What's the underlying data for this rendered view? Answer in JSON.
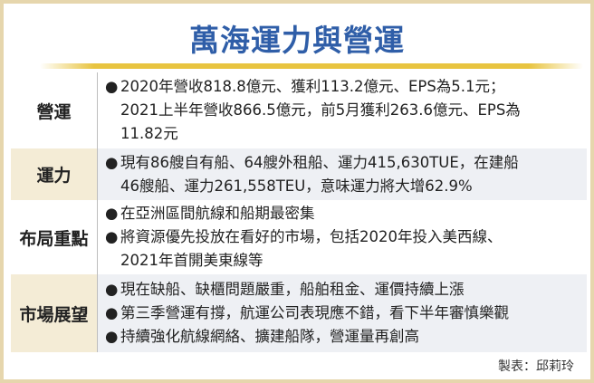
{
  "title": "萬海運力與營運",
  "rows": [
    {
      "label": "營運",
      "items": [
        "2020年營收818.8億元、獲利113.2億元、EPS為5.1元；",
        "2021上半年營收866.5億元，前5月獲利263.6億元、EPS為",
        "11.82元"
      ]
    },
    {
      "label": "運力",
      "items": [
        "現有86艘自有船、64艘外租船、運力415,630TUE，在建船",
        "46艘船、運力261,558TEU，意味運力將大增62.9%"
      ]
    },
    {
      "label": "布局重點",
      "items": [
        "在亞洲區間航線和船期最密集",
        "將資源優先投放在看好的市場，包括2020年投入美西線、",
        "2021年首開美東線等"
      ]
    },
    {
      "label": "市場展望",
      "items": [
        "現在缺船、缺櫃問題嚴重，船舶租金、運價持續上漲",
        "第三季營運有撐，航運公司表現應不錯，看下半年審慎樂觀",
        "持續強化航線網絡、擴建船隊，營運量再創高"
      ]
    }
  ],
  "bullet": "●",
  "credit": "製表：邱莉玲"
}
